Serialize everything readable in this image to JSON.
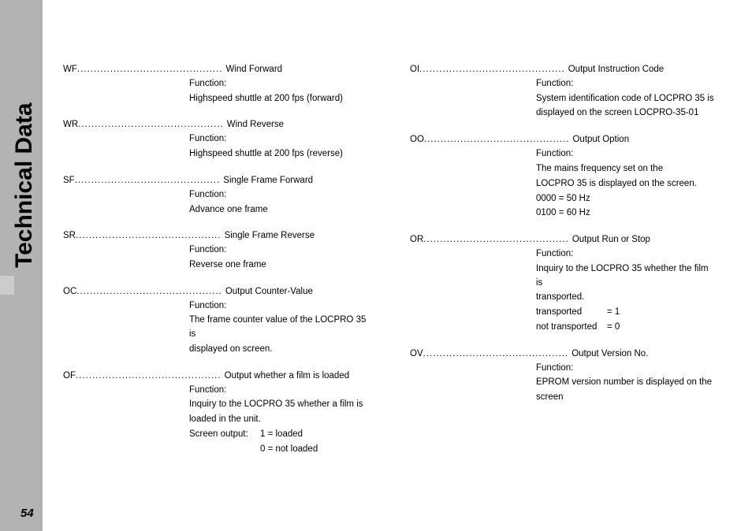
{
  "page": {
    "vertical_title": "Technical Data",
    "page_number": "54"
  },
  "left_col": [
    {
      "code": "WF",
      "title": "Wind Forward",
      "lines": [
        "Function:",
        "Highspeed shuttle at 200 fps (forward)"
      ]
    },
    {
      "code": "WR",
      "title": "Wind Reverse",
      "lines": [
        "Function:",
        "Highspeed shuttle at 200 fps (reverse)"
      ]
    },
    {
      "code": "SF",
      "title": "Single Frame Forward",
      "lines": [
        "Function:",
        "Advance one frame"
      ]
    },
    {
      "code": "SR",
      "title": "Single Frame Reverse",
      "lines": [
        "Function:",
        "Reverse one frame"
      ]
    },
    {
      "code": "OC",
      "title": "Output Counter-Value",
      "lines": [
        "Function:",
        "The frame counter value of the LOCPRO 35 is",
        "displayed on screen."
      ]
    },
    {
      "code": "OF",
      "title": "Output whether a film is loaded",
      "lines": [
        "Function:",
        "Inquiry to the LOCPRO 35 whether a film is",
        "loaded in the unit."
      ],
      "kv": [
        {
          "k": "Screen output:",
          "v": "1 = loaded"
        },
        {
          "k": "",
          "v": "0 = not loaded"
        }
      ]
    }
  ],
  "right_col": [
    {
      "code": "OI",
      "title": "Output Instruction Code",
      "lines": [
        "Function:",
        "System identification code of LOCPRO 35 is",
        "displayed on the screen LOCPRO-35-01"
      ]
    },
    {
      "code": "OO",
      "title": "Output Option",
      "lines": [
        "Function:",
        "The mains frequency set on the",
        "LOCPRO 35 is displayed on the screen.",
        "0000 = 50 Hz",
        "0100 = 60 Hz"
      ]
    },
    {
      "code": "OR",
      "title": "Output Run or Stop",
      "lines": [
        "Function:",
        "Inquiry to the LOCPRO 35 whether the film is",
        "transported."
      ],
      "kv": [
        {
          "k": "transported",
          "v": "= 1"
        },
        {
          "k": "not transported",
          "v": "= 0"
        }
      ]
    },
    {
      "code": "OV",
      "title": "Output Version No.",
      "lines": [
        "Function:",
        "EPROM version number is displayed on the",
        "screen"
      ]
    }
  ],
  "style": {
    "dot_leader": "............................................"
  }
}
